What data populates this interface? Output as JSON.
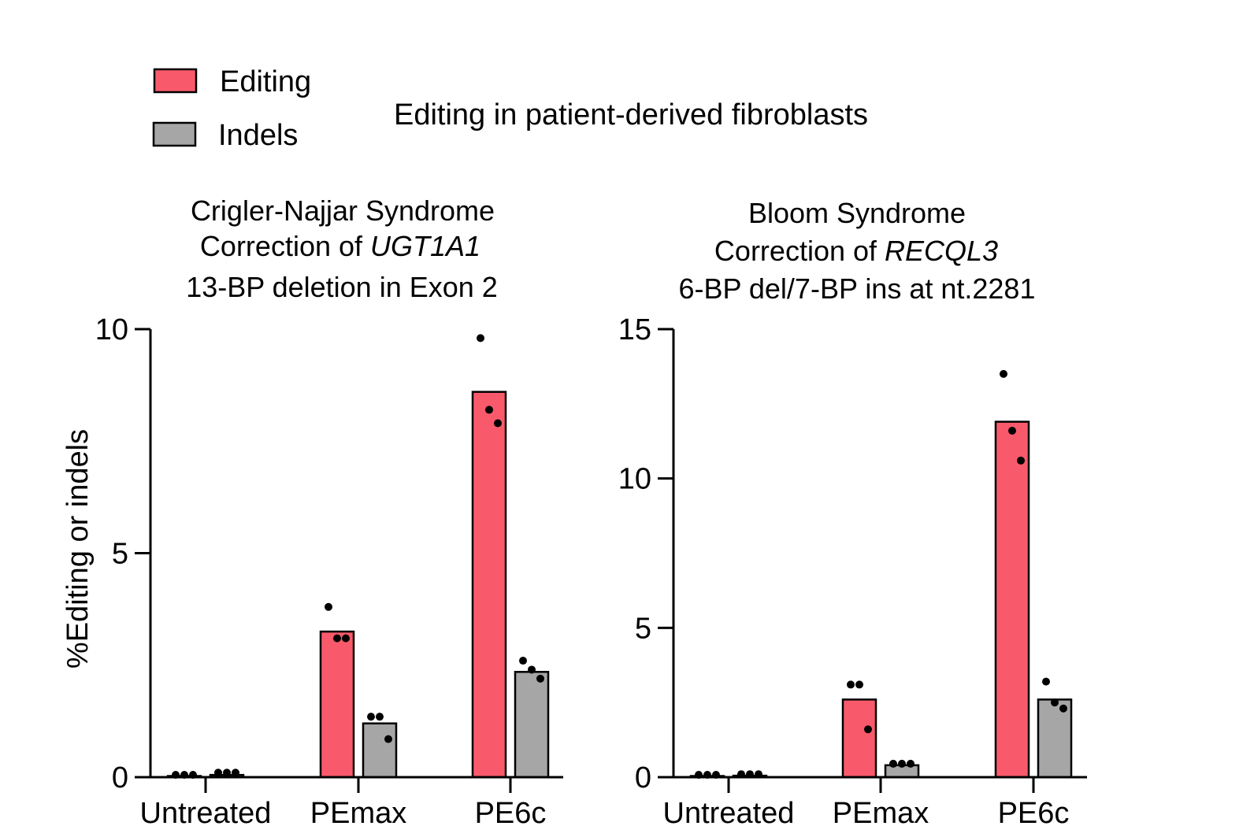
{
  "figure_title": "Editing in patient-derived fibroblasts",
  "ylabel": "%Editing or indels",
  "legend": [
    {
      "label": "Editing",
      "color": "#f95a6b"
    },
    {
      "label": "Indels",
      "color": "#a6a6a6"
    }
  ],
  "chart_data": [
    {
      "type": "bar",
      "title": {
        "line1": "Crigler-Najjar Syndrome",
        "line2_prefix": "Correction of ",
        "line2_gene": "UGT1A1",
        "line3": "13-BP deletion in Exon 2"
      },
      "categories": [
        "Untreated",
        "PEmax",
        "PE6c"
      ],
      "ylim": [
        0,
        10
      ],
      "yticks": [
        "0",
        "5",
        "10"
      ],
      "series": [
        {
          "name": "Editing",
          "values": [
            0.02,
            3.25,
            8.6
          ],
          "points": [
            [
              0.0,
              0.0,
              0.0
            ],
            [
              3.8,
              3.1,
              3.1
            ],
            [
              9.8,
              8.2,
              7.9
            ]
          ]
        },
        {
          "name": "Indels",
          "values": [
            0.05,
            1.2,
            2.35
          ],
          "points": [
            [
              0.1,
              0.1,
              0.1
            ],
            [
              1.35,
              1.35,
              0.85
            ],
            [
              2.6,
              2.4,
              2.2
            ]
          ]
        }
      ]
    },
    {
      "type": "bar",
      "title": {
        "line1": "Bloom Syndrome",
        "line2_prefix": "Correction of ",
        "line2_gene": "RECQL3",
        "line3": "6-BP del/7-BP ins at nt.2281"
      },
      "categories": [
        "Untreated",
        "PEmax",
        "PE6c"
      ],
      "ylim": [
        0,
        15
      ],
      "yticks": [
        "0",
        "5",
        "10",
        "15"
      ],
      "series": [
        {
          "name": "Editing",
          "values": [
            0.0,
            2.6,
            11.9
          ],
          "points": [
            [
              0.0,
              0.0,
              0.0
            ],
            [
              3.1,
              3.1,
              1.6
            ],
            [
              13.5,
              11.6,
              10.6
            ]
          ]
        },
        {
          "name": "Indels",
          "values": [
            0.05,
            0.4,
            2.6
          ],
          "points": [
            [
              0.1,
              0.1,
              0.1
            ],
            [
              0.45,
              0.45,
              0.45
            ],
            [
              3.2,
              2.5,
              2.3
            ]
          ]
        }
      ]
    }
  ]
}
